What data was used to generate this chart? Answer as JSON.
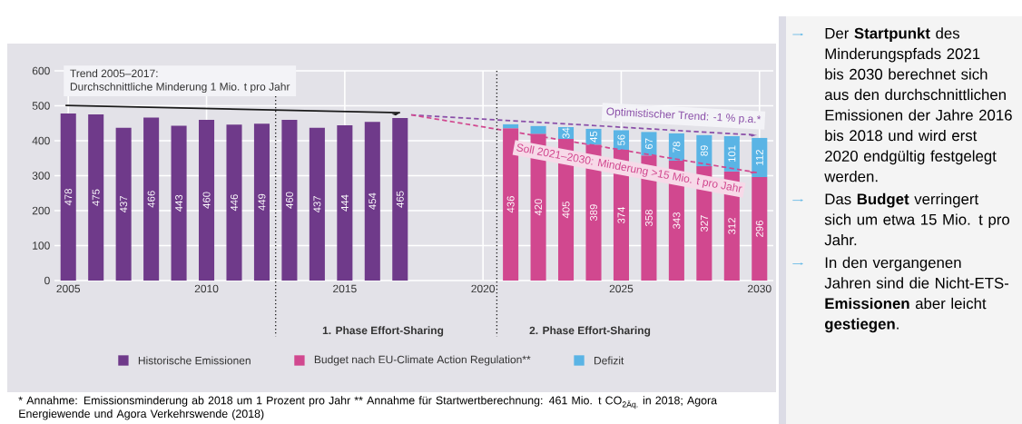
{
  "chart_data": {
    "type": "bar",
    "stacked": true,
    "grid": true,
    "legend": "bottom",
    "x": [
      2005,
      2006,
      2007,
      2008,
      2009,
      2010,
      2011,
      2012,
      2013,
      2014,
      2015,
      2016,
      2017,
      2018,
      2019,
      2020,
      2021,
      2022,
      2023,
      2024,
      2025,
      2026,
      2027,
      2028,
      2029,
      2030
    ],
    "xlim": [
      2004.5,
      2030.5
    ],
    "xticks": [
      2005,
      2010,
      2015,
      2020,
      2025,
      2030
    ],
    "ylim": [
      0,
      600
    ],
    "yticks": [
      0,
      100,
      200,
      300,
      400,
      500,
      600
    ],
    "series": [
      {
        "name": "Historische Emissionen",
        "color": "#6f3a8a",
        "values": [
          478,
          475,
          437,
          466,
          443,
          460,
          446,
          449,
          460,
          437,
          444,
          454,
          465,
          null,
          null,
          null,
          null,
          null,
          null,
          null,
          null,
          null,
          null,
          null,
          null,
          null
        ],
        "value_labels": [
          "478",
          "475",
          "437",
          "466",
          "443",
          "460",
          "446",
          "449",
          "460",
          "437",
          "444",
          "454",
          "465",
          null,
          null,
          null,
          null,
          null,
          null,
          null,
          null,
          null,
          null,
          null,
          null,
          null
        ]
      },
      {
        "name": "Budget nach EU-Climate Action Regulation**",
        "color": "#d1488f",
        "values": [
          null,
          null,
          null,
          null,
          null,
          null,
          null,
          null,
          null,
          null,
          null,
          null,
          null,
          null,
          null,
          null,
          436,
          420,
          405,
          389,
          374,
          358,
          343,
          327,
          312,
          296
        ],
        "value_labels": [
          null,
          null,
          null,
          null,
          null,
          null,
          null,
          null,
          null,
          null,
          null,
          null,
          null,
          null,
          null,
          null,
          "436",
          "420",
          "405",
          "389",
          "374",
          "358",
          "343",
          "327",
          "312",
          "296"
        ]
      },
      {
        "name": "Defizit",
        "color": "#5ab4e5",
        "values": [
          null,
          null,
          null,
          null,
          null,
          null,
          null,
          null,
          null,
          null,
          null,
          null,
          null,
          null,
          null,
          null,
          11,
          22,
          34,
          45,
          56,
          67,
          78,
          89,
          101,
          112
        ],
        "value_labels": [
          null,
          null,
          null,
          null,
          null,
          null,
          null,
          null,
          null,
          null,
          null,
          null,
          null,
          null,
          null,
          null,
          null,
          null,
          "34",
          "45",
          "56",
          "67",
          "78",
          "89",
          "101",
          "112"
        ]
      },
      {
        "type": "line",
        "color": "#1a1a1a",
        "line_style": "solid",
        "x": [
          2004.9,
          2017.0
        ],
        "values": [
          501,
          480
        ]
      },
      {
        "type": "line",
        "color": "#8a4fa8",
        "line_style": "dashed",
        "x": [
          2017.4,
          2029.9
        ],
        "values": [
          474,
          416
        ]
      },
      {
        "type": "line",
        "color": "#d1488f",
        "line_style": "dashed",
        "x": [
          2017.4,
          2029.9
        ],
        "values": [
          474,
          309
        ]
      }
    ],
    "ref_lines": [
      {
        "axis": "x",
        "value": 2012.5,
        "line_style": "dotted",
        "color": "#1a1a1a"
      },
      {
        "axis": "x",
        "value": 2020.5,
        "line_style": "dotted",
        "color": "#1a1a1a"
      }
    ],
    "annotations": [
      "Trend 2005–2017:",
      "Durchschnittliche Minderung 1 Mio. t pro Jahr",
      "Optimistischer Trend: -1 % p.a.*",
      "Soll 2021–2030: Minderung >15 Mio. t pro Jahr",
      "1. Phase Effort-Sharing",
      "2. Phase Effort-Sharing",
      "* Annahme: Emissionsminderung ab 2018 um 1 Prozent pro Jahr ** Annahme für Startwertberechnung: 461 Mio. t CO$_{2Äq.}$ in 2018; Agora Energiewende und Agora Verkehrswende (2018)",
      "Der **Startpunkt** des Minderungspfads 2021 bis 2030 berechnet sich aus den durchschnittlichen Emissionen der Jahre 2016 bis 2018 und wird erst 2020 endgültig festgelegt werden.",
      "Das **Budget** verringert sich um etwa 15 Mio. t pro Jahr.",
      "In den vergangenen Jahren sind die Nicht-ETS-**Emissionen** aber leicht **gestiegen**."
    ]
  }
}
